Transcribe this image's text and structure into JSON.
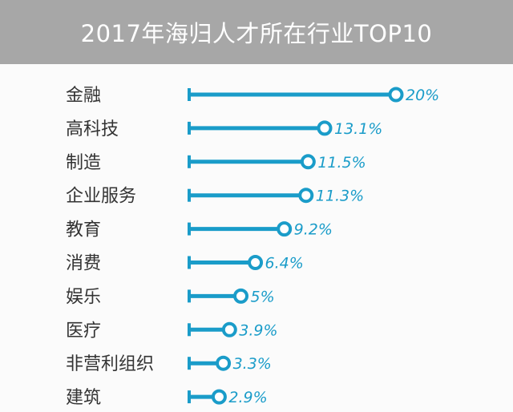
{
  "title": "2017年海归人才所在行业TOP10",
  "colors": {
    "title_bg": "#a7a7a7",
    "title_text": "#ffffff",
    "bar": "#1a9cc9",
    "label_text": "#333333",
    "value_text": "#1a9cc9"
  },
  "chart_data": {
    "type": "bar",
    "orientation": "horizontal",
    "title": "2017年海归人才所在行业TOP10",
    "categories": [
      "金融",
      "高科技",
      "制造",
      "企业服务",
      "教育",
      "消费",
      "娱乐",
      "医疗",
      "非营利组织",
      "建筑"
    ],
    "values": [
      20,
      13.1,
      11.5,
      11.3,
      9.2,
      6.4,
      5,
      3.9,
      3.3,
      2.9
    ],
    "value_labels": [
      "20%",
      "13.1%",
      "11.5%",
      "11.3%",
      "9.2%",
      "6.4%",
      "5%",
      "3.9%",
      "3.3%",
      "2.9%"
    ],
    "unit": "%",
    "xlim": [
      0,
      20
    ],
    "grid": false,
    "legend": "none"
  }
}
